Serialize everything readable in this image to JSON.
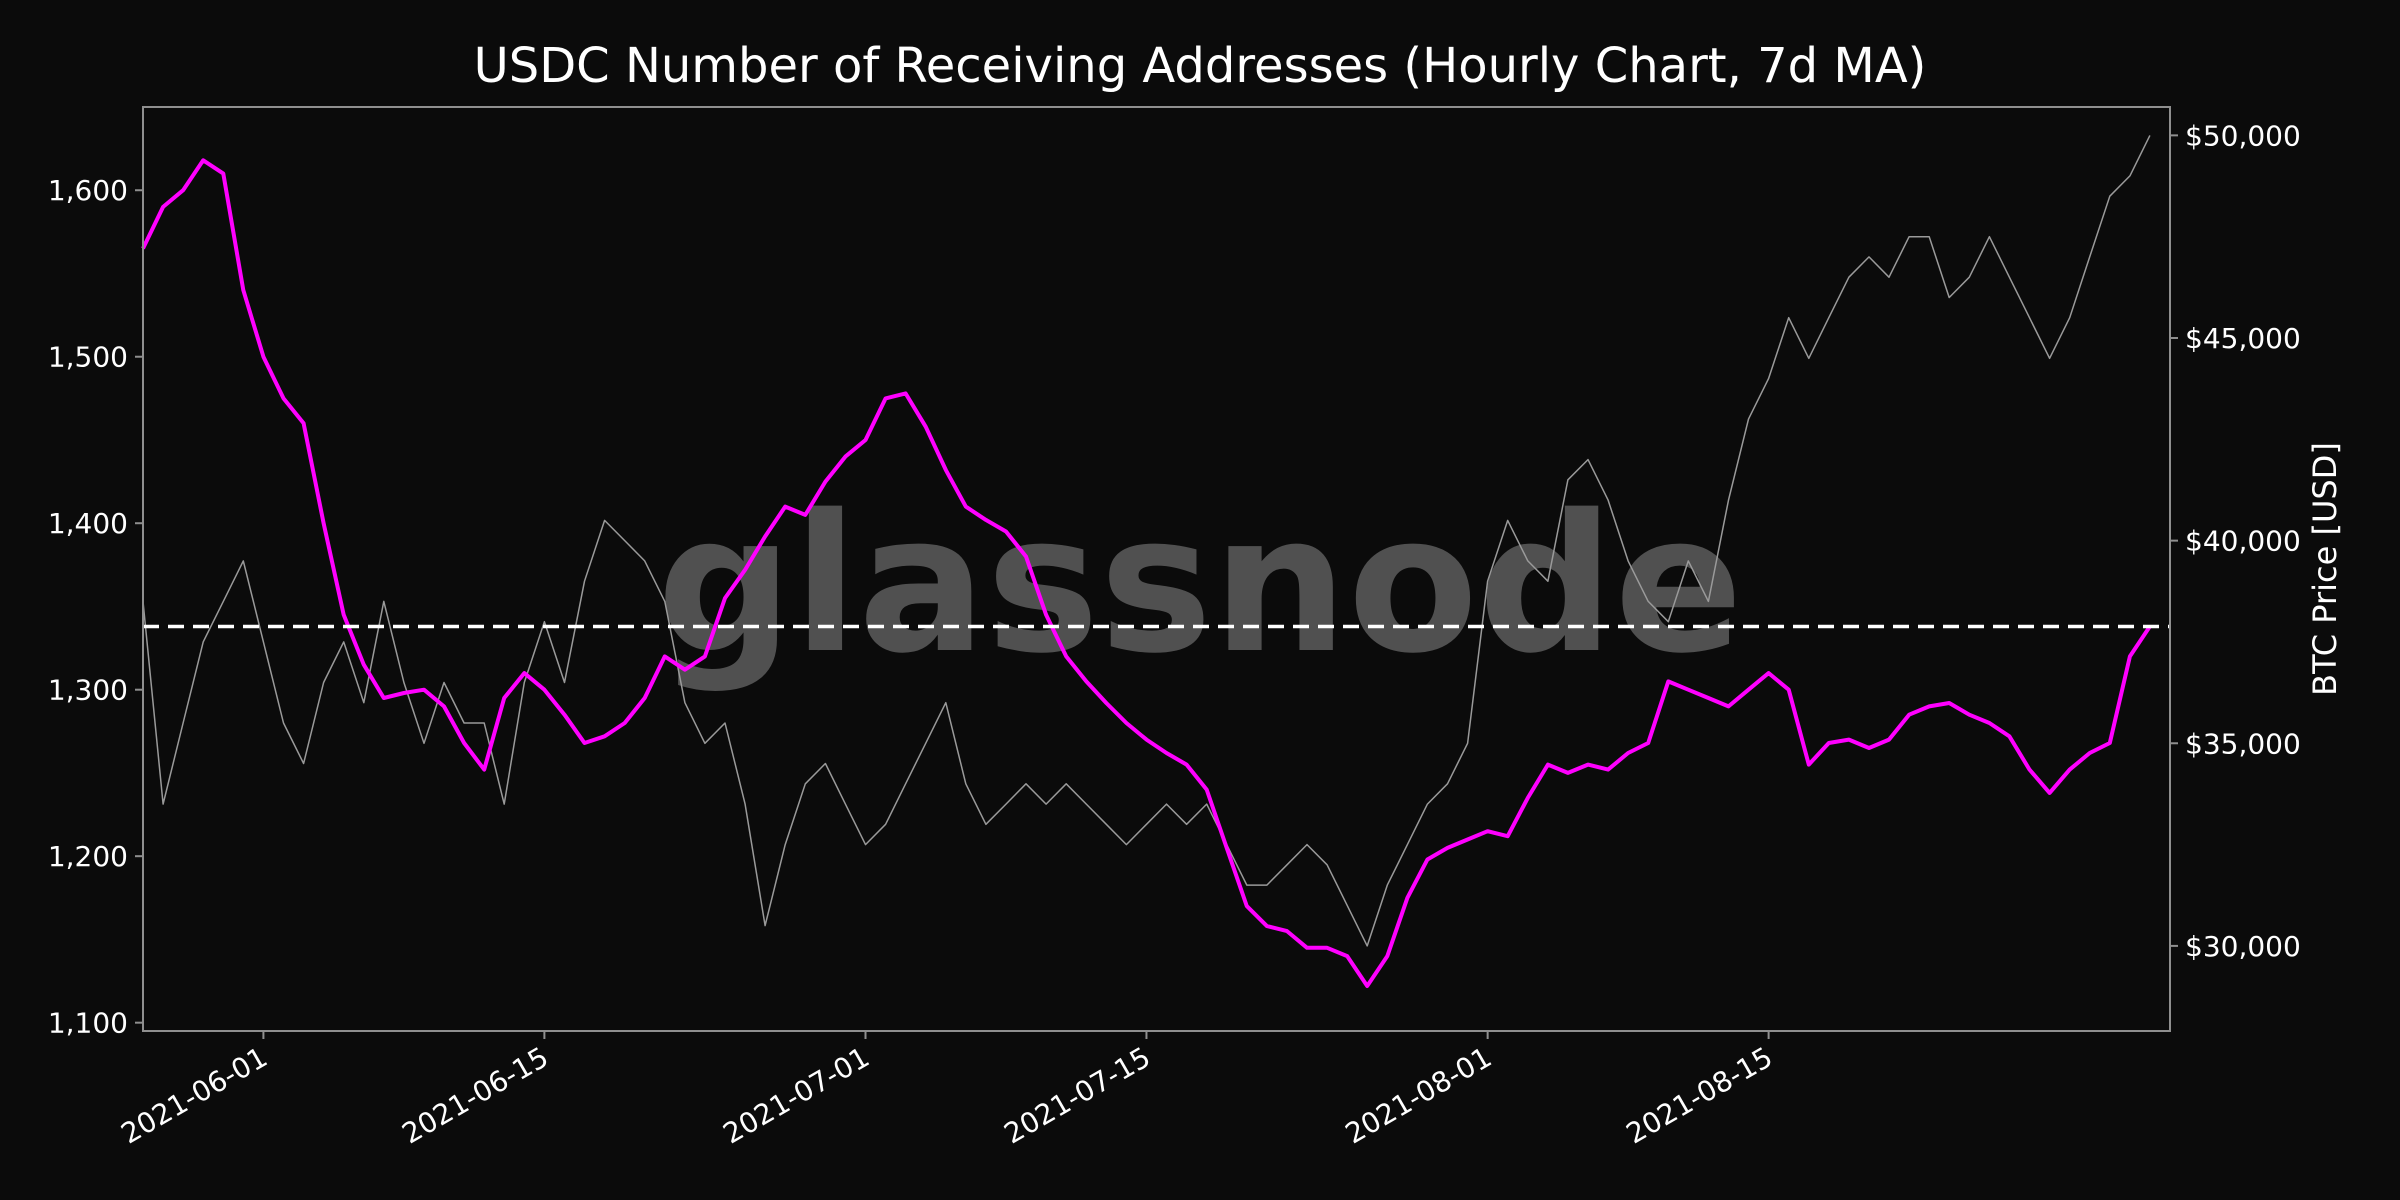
{
  "chart_data": {
    "type": "line",
    "title": "USDC Number of Receiving Addresses (Hourly Chart, 7d MA)",
    "ylabel": "",
    "y2label": "BTC Price [USD]",
    "watermark": "glassnode",
    "xlim": [
      "2021-05-26",
      "2021-09-04"
    ],
    "ylim": [
      1095,
      1650
    ],
    "y2lim": [
      27900,
      50700
    ],
    "x_ticks": [
      "2021-06-01",
      "2021-06-15",
      "2021-07-01",
      "2021-07-15",
      "2021-08-01",
      "2021-08-15"
    ],
    "y_ticks": [
      {
        "value": 1100,
        "label": "1,100"
      },
      {
        "value": 1200,
        "label": "1,200"
      },
      {
        "value": 1300,
        "label": "1,300"
      },
      {
        "value": 1400,
        "label": "1,400"
      },
      {
        "value": 1500,
        "label": "1,500"
      },
      {
        "value": 1600,
        "label": "1,600"
      }
    ],
    "y2_ticks": [
      {
        "value": 30000,
        "label": "$30,000"
      },
      {
        "value": 35000,
        "label": "$35,000"
      },
      {
        "value": 40000,
        "label": "$40,000"
      },
      {
        "value": 45000,
        "label": "$45,000"
      },
      {
        "value": 50000,
        "label": "$50,000"
      }
    ],
    "reference_line": {
      "axis": "left",
      "value": 1338,
      "style": "dashed",
      "color": "#ffffff"
    },
    "grid": false,
    "series": [
      {
        "axis": "left",
        "color": "#ff00ff",
        "points": [
          [
            "2021-05-26",
            1565
          ],
          [
            "2021-05-27",
            1590
          ],
          [
            "2021-05-28",
            1600
          ],
          [
            "2021-05-29",
            1618
          ],
          [
            "2021-05-30",
            1610
          ],
          [
            "2021-05-31",
            1540
          ],
          [
            "2021-06-01",
            1500
          ],
          [
            "2021-06-02",
            1475
          ],
          [
            "2021-06-03",
            1460
          ],
          [
            "2021-06-04",
            1400
          ],
          [
            "2021-06-05",
            1345
          ],
          [
            "2021-06-06",
            1315
          ],
          [
            "2021-06-07",
            1295
          ],
          [
            "2021-06-08",
            1298
          ],
          [
            "2021-06-09",
            1300
          ],
          [
            "2021-06-10",
            1290
          ],
          [
            "2021-06-11",
            1268
          ],
          [
            "2021-06-12",
            1252
          ],
          [
            "2021-06-13",
            1295
          ],
          [
            "2021-06-14",
            1310
          ],
          [
            "2021-06-15",
            1300
          ],
          [
            "2021-06-16",
            1285
          ],
          [
            "2021-06-17",
            1268
          ],
          [
            "2021-06-18",
            1272
          ],
          [
            "2021-06-19",
            1280
          ],
          [
            "2021-06-20",
            1295
          ],
          [
            "2021-06-21",
            1320
          ],
          [
            "2021-06-22",
            1312
          ],
          [
            "2021-06-23",
            1320
          ],
          [
            "2021-06-24",
            1355
          ],
          [
            "2021-06-25",
            1372
          ],
          [
            "2021-06-26",
            1392
          ],
          [
            "2021-06-27",
            1410
          ],
          [
            "2021-06-28",
            1405
          ],
          [
            "2021-06-29",
            1425
          ],
          [
            "2021-06-30",
            1440
          ],
          [
            "2021-07-01",
            1450
          ],
          [
            "2021-07-02",
            1475
          ],
          [
            "2021-07-03",
            1478
          ],
          [
            "2021-07-04",
            1458
          ],
          [
            "2021-07-05",
            1432
          ],
          [
            "2021-07-06",
            1410
          ],
          [
            "2021-07-07",
            1402
          ],
          [
            "2021-07-08",
            1395
          ],
          [
            "2021-07-09",
            1380
          ],
          [
            "2021-07-10",
            1345
          ],
          [
            "2021-07-11",
            1320
          ],
          [
            "2021-07-12",
            1305
          ],
          [
            "2021-07-13",
            1292
          ],
          [
            "2021-07-14",
            1280
          ],
          [
            "2021-07-15",
            1270
          ],
          [
            "2021-07-16",
            1262
          ],
          [
            "2021-07-17",
            1255
          ],
          [
            "2021-07-18",
            1240
          ],
          [
            "2021-07-19",
            1205
          ],
          [
            "2021-07-20",
            1170
          ],
          [
            "2021-07-21",
            1158
          ],
          [
            "2021-07-22",
            1155
          ],
          [
            "2021-07-23",
            1145
          ],
          [
            "2021-07-24",
            1145
          ],
          [
            "2021-07-25",
            1140
          ],
          [
            "2021-07-26",
            1122
          ],
          [
            "2021-07-27",
            1140
          ],
          [
            "2021-07-28",
            1175
          ],
          [
            "2021-07-29",
            1198
          ],
          [
            "2021-07-30",
            1205
          ],
          [
            "2021-07-31",
            1210
          ],
          [
            "2021-08-01",
            1215
          ],
          [
            "2021-08-02",
            1212
          ],
          [
            "2021-08-03",
            1235
          ],
          [
            "2021-08-04",
            1255
          ],
          [
            "2021-08-05",
            1250
          ],
          [
            "2021-08-06",
            1255
          ],
          [
            "2021-08-07",
            1252
          ],
          [
            "2021-08-08",
            1262
          ],
          [
            "2021-08-09",
            1268
          ],
          [
            "2021-08-10",
            1305
          ],
          [
            "2021-08-11",
            1300
          ],
          [
            "2021-08-12",
            1295
          ],
          [
            "2021-08-13",
            1290
          ],
          [
            "2021-08-14",
            1300
          ],
          [
            "2021-08-15",
            1310
          ],
          [
            "2021-08-16",
            1300
          ],
          [
            "2021-08-17",
            1255
          ],
          [
            "2021-08-18",
            1268
          ],
          [
            "2021-08-19",
            1270
          ],
          [
            "2021-08-20",
            1265
          ],
          [
            "2021-08-21",
            1270
          ],
          [
            "2021-08-22",
            1285
          ],
          [
            "2021-08-23",
            1290
          ],
          [
            "2021-08-24",
            1292
          ],
          [
            "2021-08-25",
            1285
          ],
          [
            "2021-08-26",
            1280
          ],
          [
            "2021-08-27",
            1272
          ],
          [
            "2021-08-28",
            1252
          ],
          [
            "2021-08-29",
            1238
          ],
          [
            "2021-08-30",
            1252
          ],
          [
            "2021-08-31",
            1262
          ],
          [
            "2021-09-01",
            1268
          ],
          [
            "2021-09-02",
            1320
          ],
          [
            "2021-09-03",
            1338
          ]
        ]
      },
      {
        "axis": "right",
        "color": "#9a9a9a",
        "points": [
          [
            "2021-05-26",
            38500
          ],
          [
            "2021-05-27",
            33500
          ],
          [
            "2021-05-28",
            35500
          ],
          [
            "2021-05-29",
            37500
          ],
          [
            "2021-05-30",
            38500
          ],
          [
            "2021-05-31",
            39500
          ],
          [
            "2021-06-01",
            37500
          ],
          [
            "2021-06-02",
            35500
          ],
          [
            "2021-06-03",
            34500
          ],
          [
            "2021-06-04",
            36500
          ],
          [
            "2021-06-05",
            37500
          ],
          [
            "2021-06-06",
            36000
          ],
          [
            "2021-06-07",
            38500
          ],
          [
            "2021-06-08",
            36500
          ],
          [
            "2021-06-09",
            35000
          ],
          [
            "2021-06-10",
            36500
          ],
          [
            "2021-06-11",
            35500
          ],
          [
            "2021-06-12",
            35500
          ],
          [
            "2021-06-13",
            33500
          ],
          [
            "2021-06-14",
            36500
          ],
          [
            "2021-06-15",
            38000
          ],
          [
            "2021-06-16",
            36500
          ],
          [
            "2021-06-17",
            39000
          ],
          [
            "2021-06-18",
            40500
          ],
          [
            "2021-06-19",
            40000
          ],
          [
            "2021-06-20",
            39500
          ],
          [
            "2021-06-21",
            38500
          ],
          [
            "2021-06-22",
            36000
          ],
          [
            "2021-06-23",
            35000
          ],
          [
            "2021-06-24",
            35500
          ],
          [
            "2021-06-25",
            33500
          ],
          [
            "2021-06-26",
            30500
          ],
          [
            "2021-06-27",
            32500
          ],
          [
            "2021-06-28",
            34000
          ],
          [
            "2021-06-29",
            34500
          ],
          [
            "2021-06-30",
            33500
          ],
          [
            "2021-07-01",
            32500
          ],
          [
            "2021-07-02",
            33000
          ],
          [
            "2021-07-03",
            34000
          ],
          [
            "2021-07-04",
            35000
          ],
          [
            "2021-07-05",
            36000
          ],
          [
            "2021-07-06",
            34000
          ],
          [
            "2021-07-07",
            33000
          ],
          [
            "2021-07-08",
            33500
          ],
          [
            "2021-07-09",
            34000
          ],
          [
            "2021-07-10",
            33500
          ],
          [
            "2021-07-11",
            34000
          ],
          [
            "2021-07-12",
            33500
          ],
          [
            "2021-07-13",
            33000
          ],
          [
            "2021-07-14",
            32500
          ],
          [
            "2021-07-15",
            33000
          ],
          [
            "2021-07-16",
            33500
          ],
          [
            "2021-07-17",
            33000
          ],
          [
            "2021-07-18",
            33500
          ],
          [
            "2021-07-19",
            32500
          ],
          [
            "2021-07-20",
            31500
          ],
          [
            "2021-07-21",
            31500
          ],
          [
            "2021-07-22",
            32000
          ],
          [
            "2021-07-23",
            32500
          ],
          [
            "2021-07-24",
            32000
          ],
          [
            "2021-07-25",
            31000
          ],
          [
            "2021-07-26",
            30000
          ],
          [
            "2021-07-27",
            31500
          ],
          [
            "2021-07-28",
            32500
          ],
          [
            "2021-07-29",
            33500
          ],
          [
            "2021-07-30",
            34000
          ],
          [
            "2021-07-31",
            35000
          ],
          [
            "2021-08-01",
            39000
          ],
          [
            "2021-08-02",
            40500
          ],
          [
            "2021-08-03",
            39500
          ],
          [
            "2021-08-04",
            39000
          ],
          [
            "2021-08-05",
            41500
          ],
          [
            "2021-08-06",
            42000
          ],
          [
            "2021-08-07",
            41000
          ],
          [
            "2021-08-08",
            39500
          ],
          [
            "2021-08-09",
            38500
          ],
          [
            "2021-08-10",
            38000
          ],
          [
            "2021-08-11",
            39500
          ],
          [
            "2021-08-12",
            38500
          ],
          [
            "2021-08-13",
            41000
          ],
          [
            "2021-08-14",
            43000
          ],
          [
            "2021-08-15",
            44000
          ],
          [
            "2021-08-16",
            45500
          ],
          [
            "2021-08-17",
            44500
          ],
          [
            "2021-08-18",
            45500
          ],
          [
            "2021-08-19",
            46500
          ],
          [
            "2021-08-20",
            47000
          ],
          [
            "2021-08-21",
            46500
          ],
          [
            "2021-08-22",
            47500
          ],
          [
            "2021-08-23",
            47500
          ],
          [
            "2021-08-24",
            46000
          ],
          [
            "2021-08-25",
            46500
          ],
          [
            "2021-08-26",
            47500
          ],
          [
            "2021-08-27",
            46500
          ],
          [
            "2021-08-28",
            45500
          ],
          [
            "2021-08-29",
            44500
          ],
          [
            "2021-08-30",
            45500
          ],
          [
            "2021-08-31",
            47000
          ],
          [
            "2021-09-01",
            48500
          ],
          [
            "2021-09-02",
            49000
          ],
          [
            "2021-09-03",
            50000
          ]
        ]
      }
    ]
  }
}
